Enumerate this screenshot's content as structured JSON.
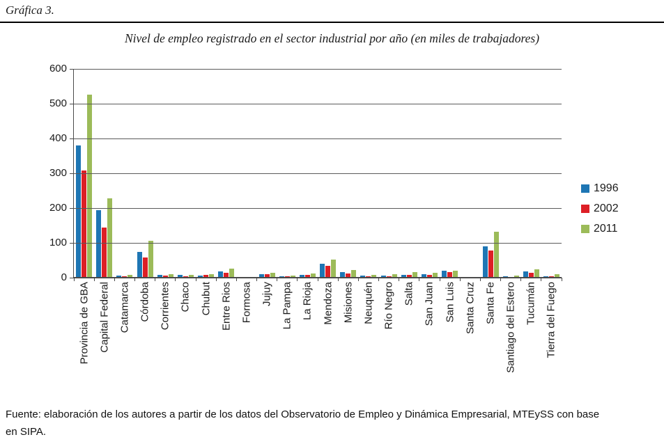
{
  "figure": {
    "caption": "Gráfica 3."
  },
  "chart_data": {
    "type": "bar",
    "title": "Nivel de empleo registrado en el sector industrial por año (en miles de trabajadores)",
    "xlabel": "",
    "ylabel": "",
    "ylim": [
      0,
      600
    ],
    "yticks": [
      0,
      100,
      200,
      300,
      400,
      500,
      600
    ],
    "grid": true,
    "legend_position": "right",
    "categories": [
      "Provincia de GBA",
      "Capital Federal",
      "Catamarca",
      "Córdoba",
      "Corrientes",
      "Chaco",
      "Chubut",
      "Entre Rios",
      "Formosa",
      "Jujuy",
      "La Pampa",
      "La Rioja",
      "Mendoza",
      "Misiones",
      "Neuquén",
      "Río Negro",
      "Salta",
      "San Juan",
      "San Luis",
      "Santa Cruz",
      "Santa Fe",
      "Santiago del Estero",
      "Tucumán",
      "Tierra del Fuego"
    ],
    "series": [
      {
        "name": "1996",
        "color": "#1E76B4",
        "values": [
          380,
          194,
          6,
          74,
          9,
          8,
          7,
          19,
          2,
          11,
          5,
          8,
          41,
          16,
          6,
          7,
          8,
          10,
          20,
          2,
          90,
          4,
          19,
          4
        ]
      },
      {
        "name": "2002",
        "color": "#DD1F26",
        "values": [
          308,
          144,
          5,
          59,
          7,
          5,
          8,
          14,
          2,
          11,
          4,
          9,
          34,
          13,
          4,
          5,
          9,
          8,
          17,
          2,
          79,
          3,
          15,
          4
        ]
      },
      {
        "name": "2011",
        "color": "#9CBB59",
        "values": [
          527,
          228,
          8,
          107,
          10,
          9,
          11,
          26,
          3,
          15,
          7,
          13,
          53,
          22,
          9,
          10,
          16,
          15,
          21,
          3,
          133,
          7,
          25,
          11
        ]
      }
    ]
  },
  "footer": {
    "lines": [
      "Fuente: elaboración de los autores a partir de los datos del Observatorio de Empleo y Dinámica Empresarial, MTEySS con base",
      "en SIPA."
    ]
  }
}
